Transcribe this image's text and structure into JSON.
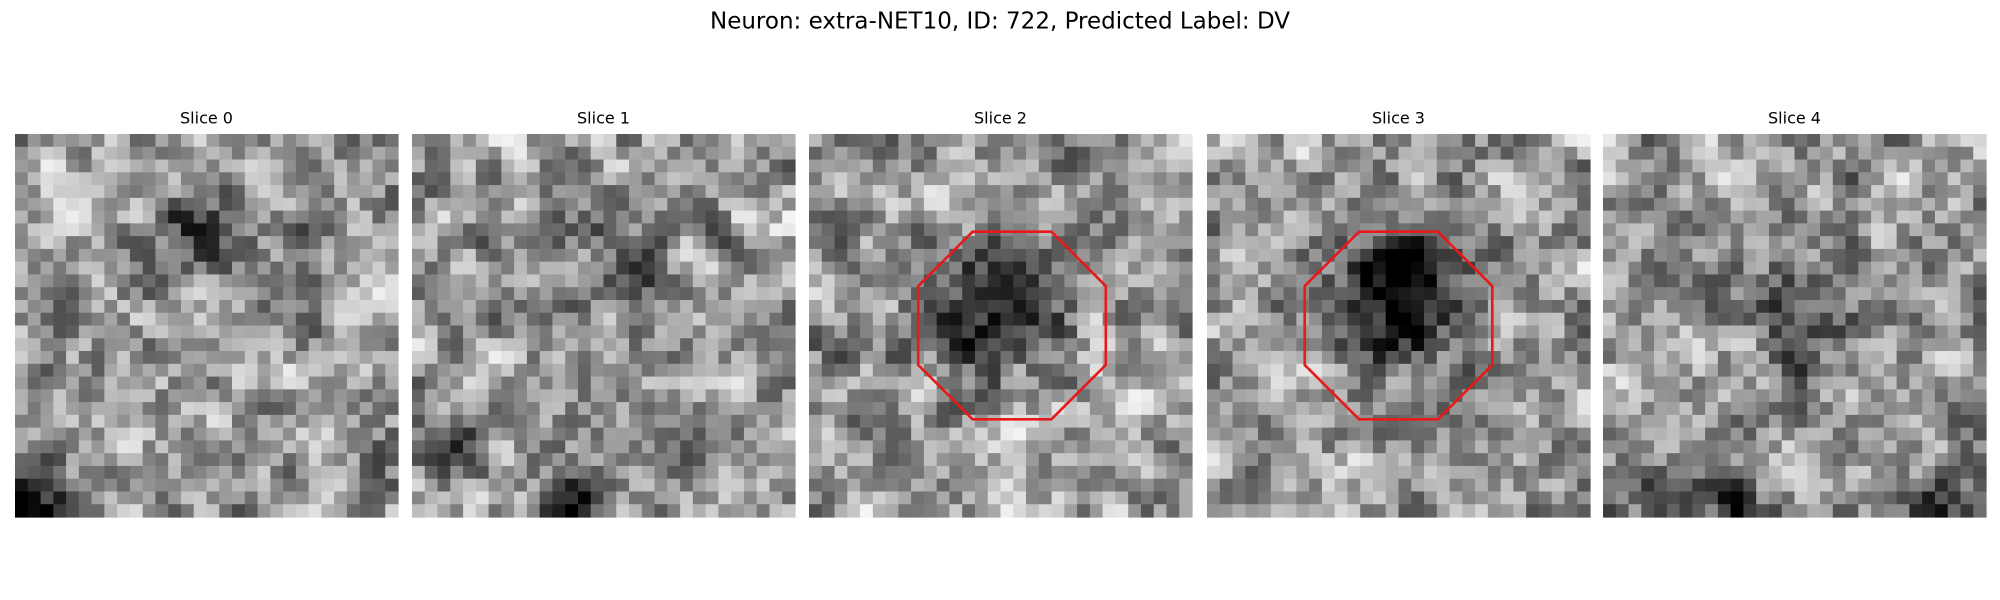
{
  "header": {
    "title": "Neuron: extra-NET10, ID: 722, Predicted Label: DV"
  },
  "panels": [
    {
      "title": "Slice 0"
    },
    {
      "title": "Slice 1"
    },
    {
      "title": "Slice 2"
    },
    {
      "title": "Slice 3"
    },
    {
      "title": "Slice 4"
    }
  ]
}
